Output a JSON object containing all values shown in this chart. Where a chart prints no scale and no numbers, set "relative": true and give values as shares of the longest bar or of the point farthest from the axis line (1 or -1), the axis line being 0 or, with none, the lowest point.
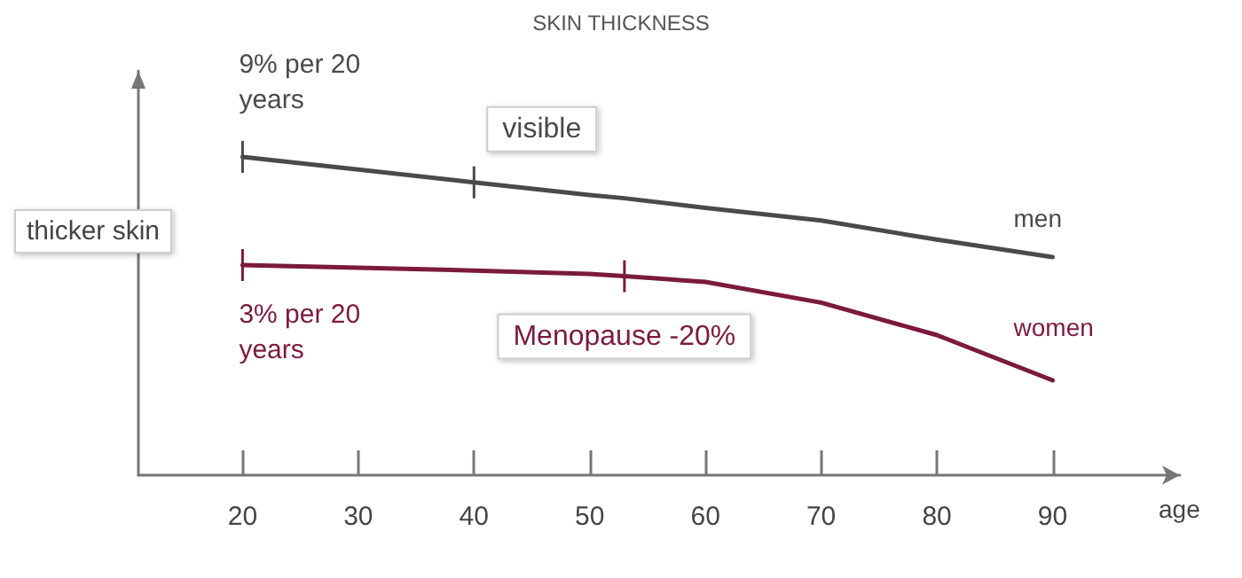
{
  "chart_data": {
    "type": "line",
    "title": "SKIN THICKNESS",
    "xlabel": "age",
    "ylabel": "thicker skin",
    "relative": true,
    "legend": false,
    "grid": false,
    "marker": "none",
    "line_style": "solid",
    "x": [
      20,
      30,
      40,
      50,
      53,
      60,
      70,
      80,
      90
    ],
    "xlim": [
      11,
      101
    ],
    "xticks": [
      20,
      30,
      40,
      50,
      60,
      70,
      80,
      90
    ],
    "series": [
      {
        "name": "men",
        "color": "#4a4a4a",
        "values": [
          1,
          0.96,
          0.92,
          0.88,
          0.87,
          0.84,
          0.8,
          0.74,
          0.685
        ]
      },
      {
        "name": "women",
        "color": "#7a1a3c",
        "values": [
          0.66,
          0.652,
          0.643,
          0.632,
          0.625,
          0.607,
          0.542,
          0.44,
          0.298
        ]
      }
    ],
    "annotations": [
      {
        "text": "9% per 20 years",
        "x": 20,
        "y": 1
      },
      {
        "text": "visible",
        "x": 40,
        "y": 0.92
      },
      {
        "text": "3% per 20 years",
        "x": 20,
        "y": 0.66
      },
      {
        "text": "Menopause -20%",
        "x": 53,
        "y": 0.625
      }
    ]
  }
}
